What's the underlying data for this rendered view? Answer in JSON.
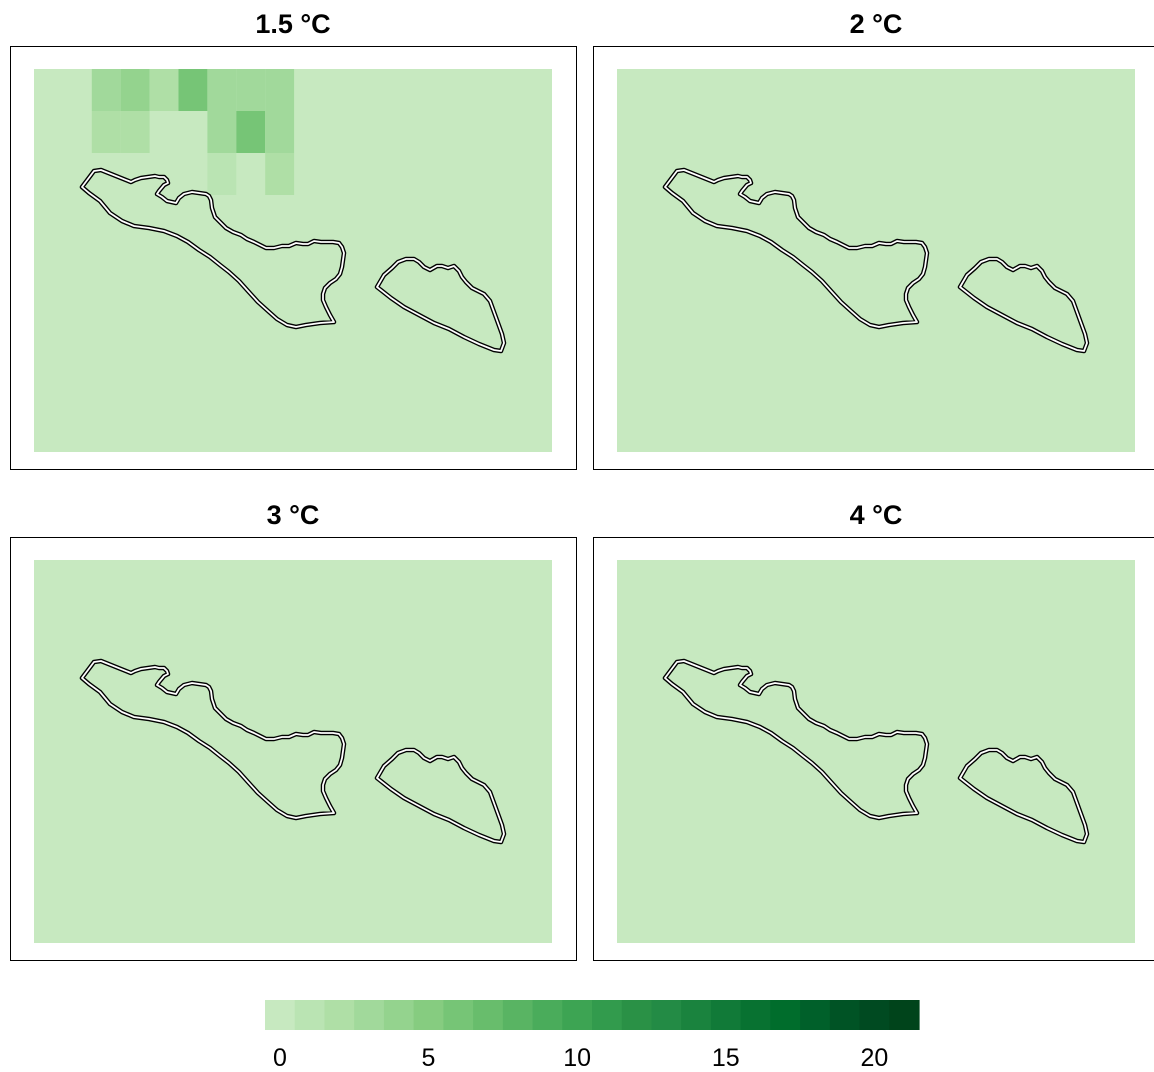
{
  "chart_data": {
    "type": "heatmap",
    "layout": "2x2 small multiples",
    "background_value": 0,
    "panels": [
      {
        "title": "1.5 °C",
        "cells": [
          {
            "row": 0,
            "col": 2,
            "value": 3
          },
          {
            "row": 0,
            "col": 3,
            "value": 4
          },
          {
            "row": 0,
            "col": 4,
            "value": 2
          },
          {
            "row": 0,
            "col": 5,
            "value": 6
          },
          {
            "row": 0,
            "col": 6,
            "value": 3
          },
          {
            "row": 0,
            "col": 7,
            "value": 3
          },
          {
            "row": 0,
            "col": 8,
            "value": 3
          },
          {
            "row": 1,
            "col": 2,
            "value": 2
          },
          {
            "row": 1,
            "col": 3,
            "value": 2
          },
          {
            "row": 1,
            "col": 6,
            "value": 3
          },
          {
            "row": 1,
            "col": 7,
            "value": 6
          },
          {
            "row": 1,
            "col": 8,
            "value": 3
          },
          {
            "row": 2,
            "col": 6,
            "value": 1
          },
          {
            "row": 2,
            "col": 8,
            "value": 2
          }
        ]
      },
      {
        "title": "2 °C",
        "cells": []
      },
      {
        "title": "3 °C",
        "cells": []
      },
      {
        "title": "4 °C",
        "cells": []
      }
    ],
    "colorbar": {
      "min": 0,
      "max": 22,
      "ticks": [
        0,
        5,
        10,
        15,
        20
      ],
      "tick_labels": [
        "0",
        "5",
        "10",
        "15",
        "20"
      ],
      "colors": [
        "#c7e9c0",
        "#bae4b3",
        "#afdfa6",
        "#a1d99b",
        "#94d38e",
        "#86cc80",
        "#76c576",
        "#68bd6c",
        "#59b463",
        "#4aac5b",
        "#3da453",
        "#329b4d",
        "#2a9146",
        "#238b45",
        "#1a833e",
        "#117a38",
        "#087231",
        "#006d2c",
        "#00602a",
        "#005325",
        "#004a21",
        "#00441b"
      ]
    }
  }
}
